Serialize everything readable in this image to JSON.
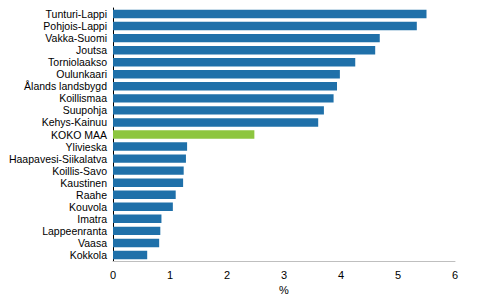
{
  "chart_data": {
    "type": "bar",
    "orientation": "horizontal",
    "categories": [
      "Tunturi-Lappi",
      "Pohjois-Lappi",
      "Vakka-Suomi",
      "Joutsa",
      "Torniolaakso",
      "Oulunkaari",
      "Ålands landsbygd",
      "Koillismaa",
      "Suupohja",
      "Kehys-Kainuu",
      "KOKO MAA",
      "Ylivieska",
      "Haapavesi-Siikalatva",
      "Koillis-Savo",
      "Kaustinen",
      "Raahe",
      "Kouvola",
      "Imatra",
      "Lappeenranta",
      "Vaasa",
      "Kokkola"
    ],
    "values": [
      5.5,
      5.33,
      4.68,
      4.6,
      4.25,
      3.98,
      3.93,
      3.87,
      3.7,
      3.6,
      2.48,
      1.3,
      1.28,
      1.24,
      1.23,
      1.1,
      1.05,
      0.85,
      0.83,
      0.81,
      0.6
    ],
    "colors": [
      "#1f70a9",
      "#1f70a9",
      "#1f70a9",
      "#1f70a9",
      "#1f70a9",
      "#1f70a9",
      "#1f70a9",
      "#1f70a9",
      "#1f70a9",
      "#1f70a9",
      "#8dc63f",
      "#1f70a9",
      "#1f70a9",
      "#1f70a9",
      "#1f70a9",
      "#1f70a9",
      "#1f70a9",
      "#1f70a9",
      "#1f70a9",
      "#1f70a9",
      "#1f70a9"
    ],
    "x_label": "%",
    "xlim": [
      0,
      6
    ],
    "xticks": [
      0,
      1,
      2,
      3,
      4,
      5,
      6
    ],
    "grid": false
  }
}
